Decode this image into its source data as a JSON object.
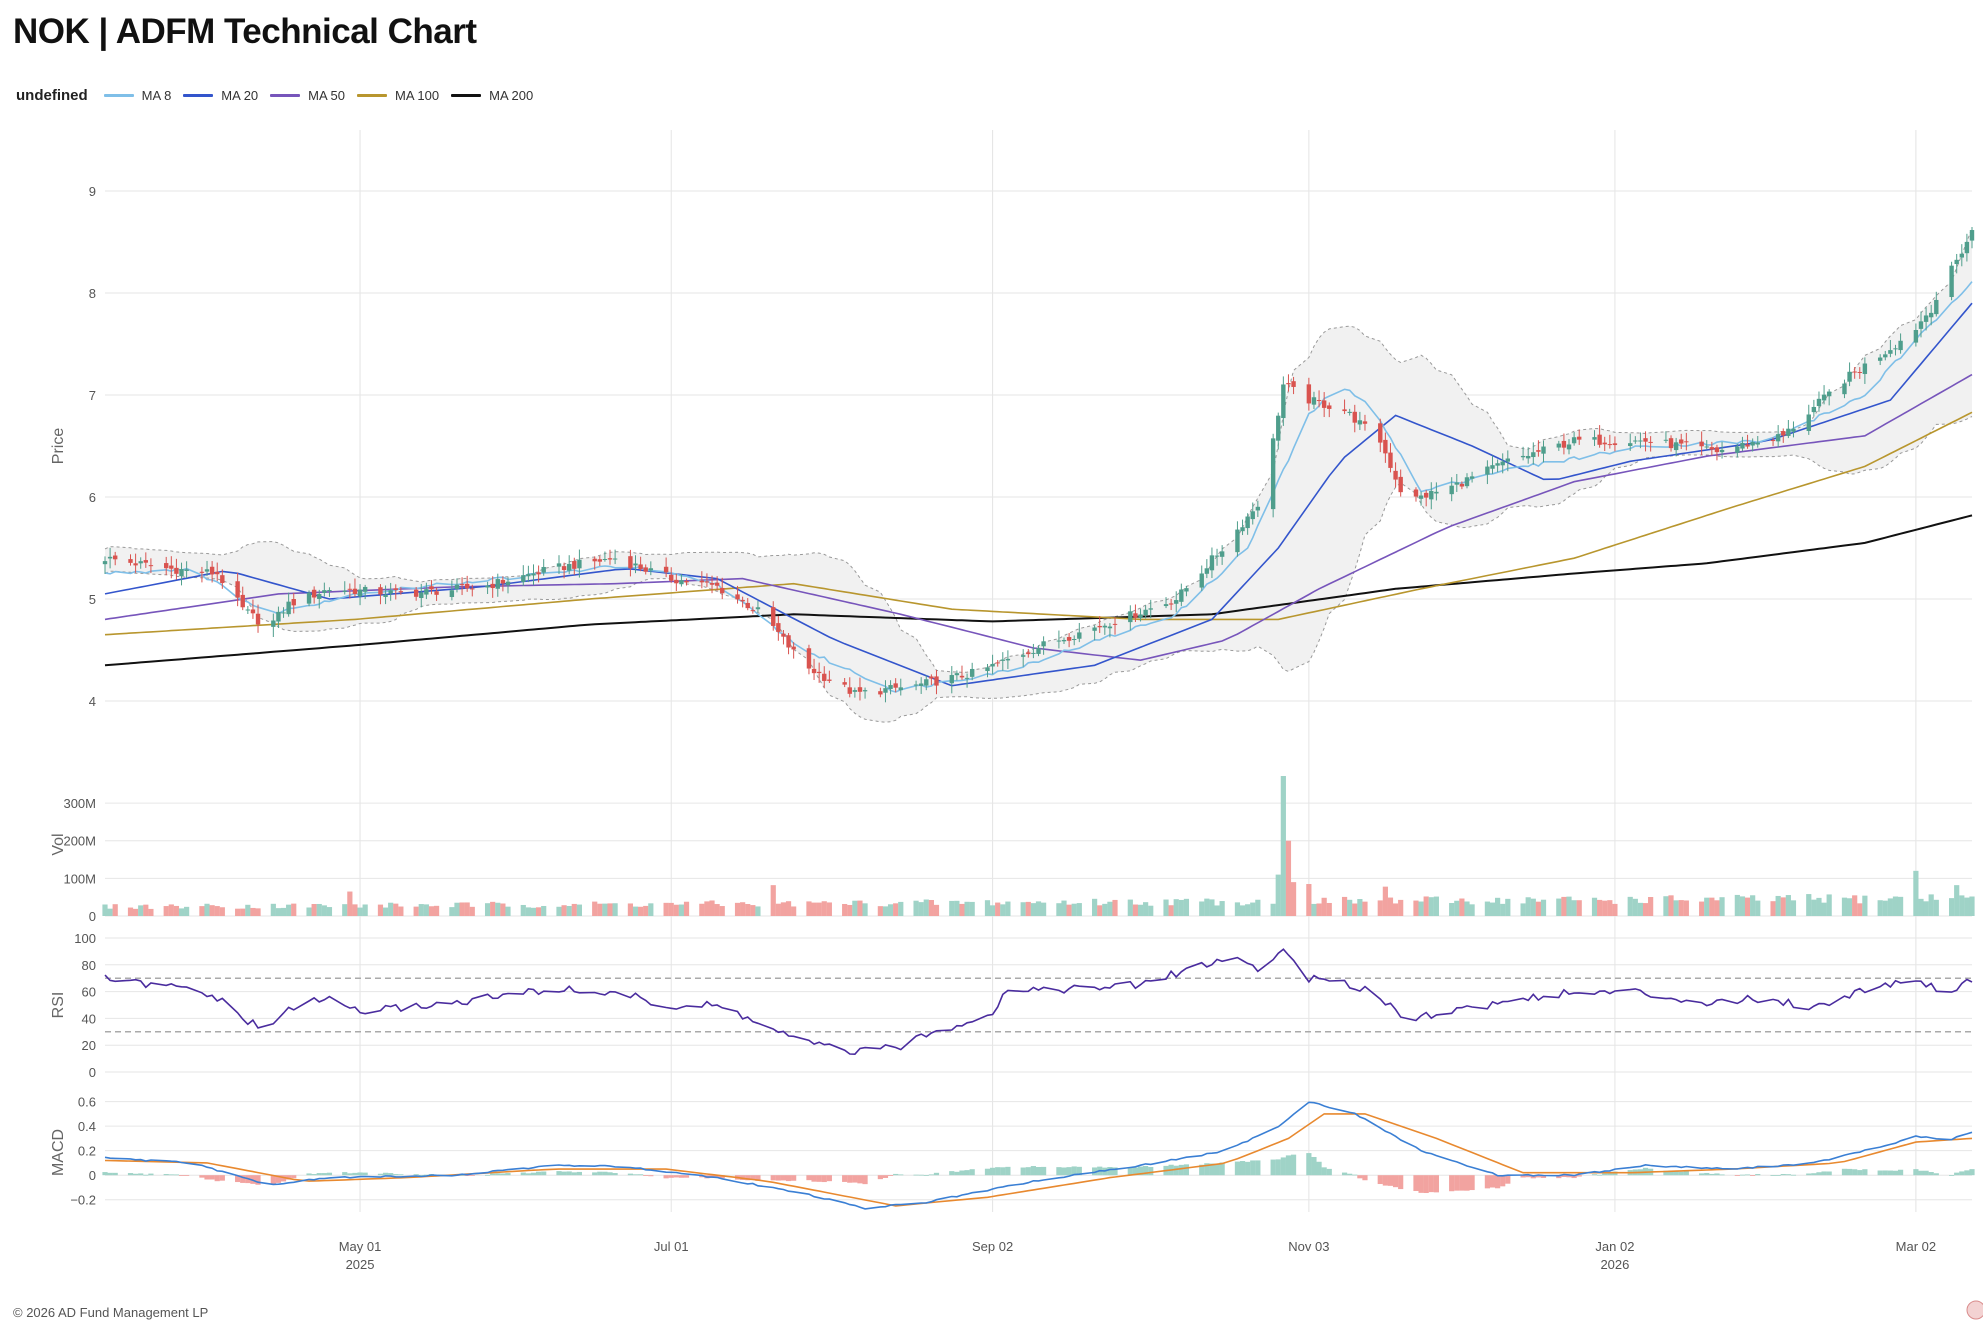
{
  "header": {
    "title": "NOK | ADFM Technical Chart"
  },
  "legend": {
    "head": "undefined",
    "items": [
      {
        "label": "MA 8",
        "color": "#7fbfe8"
      },
      {
        "label": "MA 20",
        "color": "#3355cc"
      },
      {
        "label": "MA 50",
        "color": "#7755bb"
      },
      {
        "label": "MA 100",
        "color": "#b8962e"
      },
      {
        "label": "MA 200",
        "color": "#111111"
      }
    ]
  },
  "footer": {
    "text": "© 2026 AD Fund Management LP"
  },
  "colors": {
    "up": "#4f9e8c",
    "down": "#d9534f",
    "up_vol": "#9fd3c7",
    "down_vol": "#f2a3a0",
    "rsi": "#4a2c9e",
    "macd": "#3a7fd4",
    "signal": "#e8892f",
    "band_fill": "#f1f1f1"
  },
  "chart_data": [
    {
      "type": "candlestick",
      "panel": "price",
      "ylabel": "Price",
      "ylim": [
        3.5,
        9.5
      ],
      "yticks": [
        4,
        5,
        6,
        7,
        8,
        9
      ],
      "x_range": [
        "2025-03-12",
        "2026-03-13"
      ],
      "x_ticks": [
        {
          "date": "2025-05-01",
          "label": "May 01",
          "sub": "2025"
        },
        {
          "date": "2025-07-01",
          "label": "Jul 01",
          "sub": ""
        },
        {
          "date": "2025-09-02",
          "label": "Sep 02",
          "sub": ""
        },
        {
          "date": "2025-11-03",
          "label": "Nov 03",
          "sub": ""
        },
        {
          "date": "2026-01-02",
          "label": "Jan 02",
          "sub": "2026"
        },
        {
          "date": "2026-03-02",
          "label": "Mar 02",
          "sub": ""
        }
      ],
      "bollinger_bands": true,
      "close_anchors": [
        [
          "2025-03-12",
          5.4
        ],
        [
          "2025-03-24",
          5.3
        ],
        [
          "2025-04-03",
          5.25
        ],
        [
          "2025-04-08",
          4.9
        ],
        [
          "2025-04-13",
          4.72
        ],
        [
          "2025-04-17",
          4.95
        ],
        [
          "2025-04-25",
          5.1
        ],
        [
          "2025-05-10",
          5.05
        ],
        [
          "2025-05-25",
          5.12
        ],
        [
          "2025-06-08",
          5.3
        ],
        [
          "2025-06-20",
          5.4
        ],
        [
          "2025-07-01",
          5.2
        ],
        [
          "2025-07-10",
          5.12
        ],
        [
          "2025-07-19",
          4.85
        ],
        [
          "2025-07-27",
          4.35
        ],
        [
          "2025-08-06",
          4.07
        ],
        [
          "2025-08-18",
          4.15
        ],
        [
          "2025-08-30",
          4.28
        ],
        [
          "2025-09-12",
          4.55
        ],
        [
          "2025-09-28",
          4.82
        ],
        [
          "2025-10-08",
          5.0
        ],
        [
          "2025-10-18",
          5.55
        ],
        [
          "2025-10-25",
          6.0
        ],
        [
          "2025-10-29",
          7.1
        ],
        [
          "2025-11-03",
          6.95
        ],
        [
          "2025-11-10",
          6.85
        ],
        [
          "2025-11-17",
          6.55
        ],
        [
          "2025-11-22",
          5.95
        ],
        [
          "2025-12-01",
          6.1
        ],
        [
          "2025-12-12",
          6.35
        ],
        [
          "2025-12-25",
          6.55
        ],
        [
          "2026-01-08",
          6.55
        ],
        [
          "2026-01-22",
          6.45
        ],
        [
          "2026-02-04",
          6.6
        ],
        [
          "2026-02-16",
          7.15
        ],
        [
          "2026-03-01",
          7.6
        ],
        [
          "2026-03-05",
          7.85
        ],
        [
          "2026-03-13",
          8.6
        ]
      ],
      "ma8_anchors": [
        [
          "2025-03-12",
          5.25
        ],
        [
          "2025-03-29",
          5.3
        ],
        [
          "2025-04-13",
          4.85
        ],
        [
          "2025-04-30",
          5.05
        ],
        [
          "2025-06-01",
          5.22
        ],
        [
          "2025-06-22",
          5.33
        ],
        [
          "2025-07-10",
          5.15
        ],
        [
          "2025-07-27",
          4.5
        ],
        [
          "2025-08-14",
          4.1
        ],
        [
          "2025-09-05",
          4.3
        ],
        [
          "2025-10-08",
          4.85
        ],
        [
          "2025-10-22",
          5.5
        ],
        [
          "2025-11-03",
          6.8
        ],
        [
          "2025-11-09",
          7.1
        ],
        [
          "2025-11-16",
          6.85
        ],
        [
          "2025-11-25",
          6.05
        ],
        [
          "2025-12-10",
          6.25
        ],
        [
          "2026-01-08",
          6.5
        ],
        [
          "2026-02-01",
          6.55
        ],
        [
          "2026-02-20",
          7.0
        ],
        [
          "2026-03-13",
          8.12
        ]
      ],
      "ma20_anchors": [
        [
          "2025-03-12",
          5.05
        ],
        [
          "2025-04-05",
          5.28
        ],
        [
          "2025-04-25",
          5.0
        ],
        [
          "2025-05-25",
          5.12
        ],
        [
          "2025-06-22",
          5.3
        ],
        [
          "2025-07-10",
          5.2
        ],
        [
          "2025-08-02",
          4.6
        ],
        [
          "2025-08-25",
          4.15
        ],
        [
          "2025-09-22",
          4.35
        ],
        [
          "2025-10-15",
          4.8
        ],
        [
          "2025-10-28",
          5.5
        ],
        [
          "2025-11-09",
          6.35
        ],
        [
          "2025-11-20",
          6.8
        ],
        [
          "2025-12-05",
          6.5
        ],
        [
          "2025-12-20",
          6.15
        ],
        [
          "2026-01-05",
          6.35
        ],
        [
          "2026-02-01",
          6.55
        ],
        [
          "2026-02-25",
          6.95
        ],
        [
          "2026-03-13",
          7.9
        ]
      ],
      "ma50_anchors": [
        [
          "2025-03-12",
          4.8
        ],
        [
          "2025-04-15",
          5.05
        ],
        [
          "2025-05-20",
          5.12
        ],
        [
          "2025-06-20",
          5.15
        ],
        [
          "2025-07-15",
          5.2
        ],
        [
          "2025-08-15",
          4.85
        ],
        [
          "2025-09-10",
          4.52
        ],
        [
          "2025-10-01",
          4.4
        ],
        [
          "2025-10-18",
          4.6
        ],
        [
          "2025-11-05",
          5.1
        ],
        [
          "2025-11-30",
          5.7
        ],
        [
          "2025-12-25",
          6.15
        ],
        [
          "2026-01-20",
          6.4
        ],
        [
          "2026-02-20",
          6.6
        ],
        [
          "2026-03-13",
          7.2
        ]
      ],
      "ma100_anchors": [
        [
          "2025-03-12",
          4.65
        ],
        [
          "2025-04-30",
          4.8
        ],
        [
          "2025-06-15",
          5.0
        ],
        [
          "2025-07-25",
          5.15
        ],
        [
          "2025-08-25",
          4.9
        ],
        [
          "2025-10-01",
          4.8
        ],
        [
          "2025-10-28",
          4.8
        ],
        [
          "2025-11-25",
          5.1
        ],
        [
          "2025-12-25",
          5.4
        ],
        [
          "2026-01-25",
          5.9
        ],
        [
          "2026-02-20",
          6.3
        ],
        [
          "2026-03-13",
          6.83
        ]
      ],
      "ma200_anchors": [
        [
          "2025-03-12",
          4.35
        ],
        [
          "2025-05-01",
          4.55
        ],
        [
          "2025-06-15",
          4.75
        ],
        [
          "2025-07-25",
          4.85
        ],
        [
          "2025-09-02",
          4.78
        ],
        [
          "2025-10-15",
          4.85
        ],
        [
          "2025-11-20",
          5.1
        ],
        [
          "2025-12-25",
          5.25
        ],
        [
          "2026-01-20",
          5.35
        ],
        [
          "2026-02-20",
          5.55
        ],
        [
          "2026-03-13",
          5.82
        ]
      ]
    },
    {
      "type": "bar",
      "panel": "volume",
      "ylabel": "Vol",
      "ylim": [
        0,
        380
      ],
      "yticks": [
        {
          "value": 0,
          "label": "0"
        },
        {
          "value": 100,
          "label": "100M"
        },
        {
          "value": 200,
          "label": "200M"
        },
        {
          "value": 300,
          "label": "300M"
        }
      ],
      "unit": "M",
      "baseline_millions": 18,
      "spikes": [
        [
          "2025-04-29",
          65
        ],
        [
          "2025-07-21",
          82
        ],
        [
          "2025-10-28",
          110
        ],
        [
          "2025-10-29",
          372
        ],
        [
          "2025-10-30",
          200
        ],
        [
          "2025-10-31",
          90
        ],
        [
          "2025-11-03",
          85
        ],
        [
          "2025-11-18",
          78
        ],
        [
          "2026-03-02",
          120
        ],
        [
          "2026-03-10",
          82
        ]
      ]
    },
    {
      "type": "line",
      "panel": "rsi",
      "ylabel": "RSI",
      "ylim": [
        0,
        100
      ],
      "yticks": [
        0,
        20,
        40,
        60,
        80,
        100
      ],
      "reference_lines": [
        30,
        70
      ],
      "anchors": [
        [
          "2025-03-12",
          70
        ],
        [
          "2025-03-20",
          65
        ],
        [
          "2025-03-29",
          62
        ],
        [
          "2025-04-03",
          55
        ],
        [
          "2025-04-08",
          40
        ],
        [
          "2025-04-13",
          30
        ],
        [
          "2025-04-17",
          48
        ],
        [
          "2025-04-25",
          55
        ],
        [
          "2025-05-01",
          45
        ],
        [
          "2025-05-20",
          52
        ],
        [
          "2025-06-08",
          62
        ],
        [
          "2025-06-22",
          58
        ],
        [
          "2025-07-01",
          48
        ],
        [
          "2025-07-10",
          50
        ],
        [
          "2025-07-19",
          35
        ],
        [
          "2025-07-27",
          22
        ],
        [
          "2025-08-06",
          15
        ],
        [
          "2025-08-14",
          18
        ],
        [
          "2025-08-22",
          30
        ],
        [
          "2025-09-02",
          45
        ],
        [
          "2025-09-05",
          62
        ],
        [
          "2025-09-20",
          62
        ],
        [
          "2025-10-01",
          65
        ],
        [
          "2025-10-13",
          80
        ],
        [
          "2025-10-20",
          85
        ],
        [
          "2025-10-25",
          75
        ],
        [
          "2025-10-29",
          92
        ],
        [
          "2025-11-03",
          70
        ],
        [
          "2025-11-15",
          62
        ],
        [
          "2025-11-22",
          40
        ],
        [
          "2025-12-05",
          48
        ],
        [
          "2025-12-20",
          58
        ],
        [
          "2026-01-05",
          60
        ],
        [
          "2026-01-20",
          52
        ],
        [
          "2026-02-01",
          55
        ],
        [
          "2026-02-10",
          48
        ],
        [
          "2026-02-20",
          62
        ],
        [
          "2026-03-02",
          70
        ],
        [
          "2026-03-08",
          58
        ],
        [
          "2026-03-13",
          70
        ]
      ]
    },
    {
      "type": "line+bar",
      "panel": "macd",
      "ylabel": "MACD",
      "ylim": [
        -0.3,
        0.67
      ],
      "yticks": [
        {
          "value": -0.2,
          "label": "−0.2"
        },
        {
          "value": 0,
          "label": "0"
        },
        {
          "value": 0.2,
          "label": "0.2"
        },
        {
          "value": 0.4,
          "label": "0.4"
        },
        {
          "value": 0.6,
          "label": "0.6"
        }
      ],
      "series": [
        {
          "name": "MACD",
          "anchors": [
            [
              "2025-03-12",
              0.14
            ],
            [
              "2025-03-29",
              0.1
            ],
            [
              "2025-04-13",
              -0.08
            ],
            [
              "2025-04-25",
              -0.02
            ],
            [
              "2025-05-20",
              0.0
            ],
            [
              "2025-06-08",
              0.08
            ],
            [
              "2025-06-22",
              0.07
            ],
            [
              "2025-07-10",
              -0.02
            ],
            [
              "2025-07-27",
              -0.15
            ],
            [
              "2025-08-08",
              -0.27
            ],
            [
              "2025-08-20",
              -0.22
            ],
            [
              "2025-09-10",
              -0.05
            ],
            [
              "2025-10-01",
              0.08
            ],
            [
              "2025-10-18",
              0.2
            ],
            [
              "2025-10-28",
              0.4
            ],
            [
              "2025-11-03",
              0.6
            ],
            [
              "2025-11-12",
              0.5
            ],
            [
              "2025-11-25",
              0.2
            ],
            [
              "2025-12-10",
              0.0
            ],
            [
              "2025-12-25",
              0.0
            ],
            [
              "2026-01-08",
              0.08
            ],
            [
              "2026-01-25",
              0.05
            ],
            [
              "2026-02-10",
              0.1
            ],
            [
              "2026-02-25",
              0.25
            ],
            [
              "2026-03-02",
              0.32
            ],
            [
              "2026-03-08",
              0.28
            ],
            [
              "2026-03-13",
              0.35
            ]
          ]
        },
        {
          "name": "Signal",
          "anchors": [
            [
              "2025-03-12",
              0.12
            ],
            [
              "2025-04-01",
              0.1
            ],
            [
              "2025-04-20",
              -0.05
            ],
            [
              "2025-05-10",
              -0.02
            ],
            [
              "2025-06-08",
              0.05
            ],
            [
              "2025-06-30",
              0.05
            ],
            [
              "2025-07-20",
              -0.05
            ],
            [
              "2025-08-14",
              -0.25
            ],
            [
              "2025-09-01",
              -0.18
            ],
            [
              "2025-09-25",
              -0.02
            ],
            [
              "2025-10-18",
              0.1
            ],
            [
              "2025-10-30",
              0.3
            ],
            [
              "2025-11-06",
              0.5
            ],
            [
              "2025-11-14",
              0.5
            ],
            [
              "2025-11-28",
              0.3
            ],
            [
              "2025-12-15",
              0.02
            ],
            [
              "2026-01-05",
              0.02
            ],
            [
              "2026-01-25",
              0.05
            ],
            [
              "2026-02-15",
              0.1
            ],
            [
              "2026-03-02",
              0.27
            ],
            [
              "2026-03-13",
              0.3
            ]
          ]
        }
      ]
    }
  ]
}
